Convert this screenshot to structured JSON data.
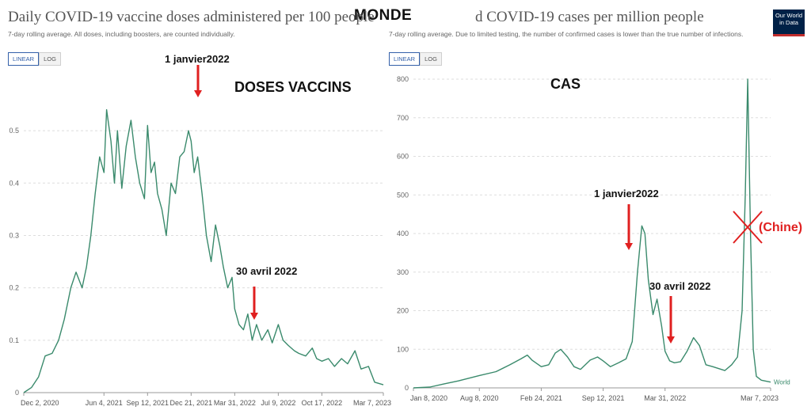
{
  "page_title": "MONDE",
  "logo": {
    "line1": "Our World",
    "line2": "in Data"
  },
  "colors": {
    "line": "#3a8a6c",
    "arrow": "#e02020",
    "grid": "#dddddd",
    "cross": "#e02020",
    "annotation_red": "#e02020"
  },
  "left": {
    "title": "Daily COVID-19 vaccine doses administered per 100 people",
    "subtitle": "7-day rolling average. All doses, including boosters, are counted individually.",
    "toggle": {
      "linear": "LINEAR",
      "log": "LOG"
    },
    "big_label": "DOSES VACCINS",
    "annotations": [
      {
        "text": "1 janvier2022"
      },
      {
        "text": "30 avril 2022"
      }
    ]
  },
  "right": {
    "title": "d COVID-19 cases per million people",
    "subtitle": "7-day rolling average. Due to limited testing, the number of confirmed cases is lower than the true number of infections.",
    "toggle": {
      "linear": "LINEAR",
      "log": "LOG"
    },
    "big_label": "CAS",
    "annotations": [
      {
        "text": "1 janvier2022"
      },
      {
        "text": "30 avril 2022"
      }
    ],
    "china_label": "(Chine)"
  },
  "chart_data": [
    {
      "type": "line",
      "title": "Daily COVID-19 vaccine doses administered per 100 people",
      "subtitle": "7-day rolling average. All doses, including boosters, are counted individually.",
      "x_type": "date",
      "xlim": [
        "2020-12-02",
        "2023-03-07"
      ],
      "x_ticks": [
        "Dec 2, 2020",
        "Jun 4, 2021",
        "Sep 12, 2021",
        "Dec 21, 2021",
        "Mar 31, 2022",
        "Jul 9, 2022",
        "Oct 17, 2022",
        "Mar 7, 2023"
      ],
      "ylim": [
        0,
        0.55
      ],
      "y_ticks": [
        "0",
        "0.1",
        "0.2",
        "0.3",
        "0.4",
        "0.5"
      ],
      "y_tick_values": [
        0,
        0.1,
        0.2,
        0.3,
        0.4,
        0.5
      ],
      "grid": true,
      "series": [
        {
          "x": [
            "2020-12-02",
            "2020-12-20",
            "2021-01-05",
            "2021-01-20",
            "2021-02-05",
            "2021-02-20",
            "2021-03-05",
            "2021-03-20",
            "2021-04-01",
            "2021-04-15",
            "2021-04-25",
            "2021-05-05",
            "2021-05-15",
            "2021-05-25",
            "2021-06-04",
            "2021-06-10",
            "2021-06-20",
            "2021-06-28",
            "2021-07-05",
            "2021-07-15",
            "2021-07-25",
            "2021-08-05",
            "2021-08-15",
            "2021-08-25",
            "2021-09-05",
            "2021-09-12",
            "2021-09-20",
            "2021-09-28",
            "2021-10-05",
            "2021-10-15",
            "2021-10-25",
            "2021-11-05",
            "2021-11-15",
            "2021-11-25",
            "2021-12-05",
            "2021-12-15",
            "2021-12-21",
            "2021-12-28",
            "2022-01-05",
            "2022-01-15",
            "2022-01-25",
            "2022-02-05",
            "2022-02-15",
            "2022-02-25",
            "2022-03-05",
            "2022-03-15",
            "2022-03-25",
            "2022-03-31",
            "2022-04-10",
            "2022-04-20",
            "2022-04-30",
            "2022-05-10",
            "2022-05-20",
            "2022-06-01",
            "2022-06-15",
            "2022-06-25",
            "2022-07-09",
            "2022-07-20",
            "2022-08-01",
            "2022-08-15",
            "2022-08-25",
            "2022-09-10",
            "2022-09-25",
            "2022-10-05",
            "2022-10-17",
            "2022-11-01",
            "2022-11-15",
            "2022-12-01",
            "2022-12-15",
            "2023-01-01",
            "2023-01-15",
            "2023-02-01",
            "2023-02-15",
            "2023-03-07"
          ],
          "y": [
            0,
            0.01,
            0.03,
            0.07,
            0.075,
            0.1,
            0.14,
            0.2,
            0.23,
            0.2,
            0.24,
            0.3,
            0.38,
            0.45,
            0.42,
            0.54,
            0.48,
            0.4,
            0.5,
            0.39,
            0.47,
            0.52,
            0.45,
            0.4,
            0.37,
            0.51,
            0.42,
            0.44,
            0.38,
            0.35,
            0.3,
            0.4,
            0.38,
            0.45,
            0.46,
            0.5,
            0.48,
            0.42,
            0.45,
            0.38,
            0.3,
            0.25,
            0.32,
            0.28,
            0.24,
            0.2,
            0.22,
            0.16,
            0.13,
            0.12,
            0.15,
            0.1,
            0.13,
            0.1,
            0.12,
            0.095,
            0.13,
            0.1,
            0.09,
            0.08,
            0.075,
            0.07,
            0.085,
            0.065,
            0.06,
            0.065,
            0.05,
            0.065,
            0.055,
            0.08,
            0.045,
            0.05,
            0.02,
            0.015
          ]
        }
      ]
    },
    {
      "type": "line",
      "title": "d COVID-19 cases per million people",
      "subtitle": "7-day rolling average. Due to limited testing, the number of confirmed cases is lower than the true number of infections.",
      "x_type": "date",
      "xlim": [
        "2020-01-08",
        "2023-03-07"
      ],
      "x_ticks": [
        "Jan 8, 2020",
        "Aug 8, 2020",
        "Feb 24, 2021",
        "Sep 12, 2021",
        "Mar 31, 2022",
        "Mar 7, 2023"
      ],
      "ylim": [
        0,
        800
      ],
      "y_ticks": [
        "0",
        "100",
        "200",
        "300",
        "400",
        "500",
        "600",
        "700",
        "800"
      ],
      "y_tick_values": [
        0,
        100,
        200,
        300,
        400,
        500,
        600,
        700,
        800
      ],
      "grid": true,
      "series": [
        {
          "name": "World",
          "x": [
            "2020-01-08",
            "2020-03-01",
            "2020-04-15",
            "2020-06-01",
            "2020-08-08",
            "2020-10-01",
            "2020-11-15",
            "2020-12-20",
            "2021-01-10",
            "2021-01-25",
            "2021-02-24",
            "2021-03-20",
            "2021-04-10",
            "2021-04-28",
            "2021-05-20",
            "2021-06-10",
            "2021-07-01",
            "2021-08-01",
            "2021-08-25",
            "2021-09-12",
            "2021-10-05",
            "2021-11-01",
            "2021-11-25",
            "2021-12-15",
            "2022-01-01",
            "2022-01-15",
            "2022-01-25",
            "2022-02-05",
            "2022-02-20",
            "2022-03-05",
            "2022-03-20",
            "2022-03-31",
            "2022-04-15",
            "2022-04-30",
            "2022-05-20",
            "2022-06-10",
            "2022-07-01",
            "2022-07-20",
            "2022-08-10",
            "2022-09-01",
            "2022-09-20",
            "2022-10-10",
            "2022-11-01",
            "2022-11-20",
            "2022-12-05",
            "2022-12-15",
            "2022-12-23",
            "2023-01-01",
            "2023-01-10",
            "2023-01-20",
            "2023-02-05",
            "2023-03-07"
          ],
          "y": [
            0,
            2,
            10,
            18,
            32,
            42,
            60,
            75,
            85,
            72,
            55,
            60,
            90,
            100,
            80,
            55,
            48,
            72,
            80,
            70,
            55,
            65,
            75,
            120,
            300,
            420,
            400,
            280,
            190,
            230,
            160,
            95,
            70,
            65,
            68,
            95,
            130,
            110,
            60,
            55,
            50,
            45,
            60,
            80,
            200,
            500,
            800,
            400,
            100,
            30,
            20,
            15
          ]
        }
      ]
    }
  ]
}
